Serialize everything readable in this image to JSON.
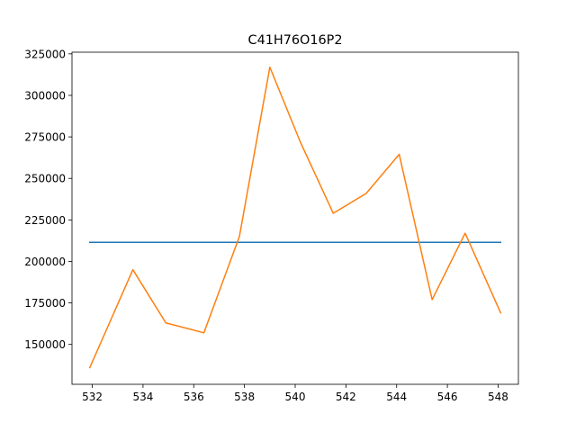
{
  "chart_data": {
    "type": "line",
    "title": "C41H76O16P2",
    "xlabel": "",
    "ylabel": "",
    "xlim": [
      531.2,
      548.8
    ],
    "ylim": [
      126000,
      326000
    ],
    "xticks": [
      532,
      534,
      536,
      538,
      540,
      542,
      544,
      546,
      548
    ],
    "yticks": [
      150000,
      175000,
      200000,
      225000,
      250000,
      275000,
      300000,
      325000
    ],
    "grid": false,
    "legend": "none",
    "series": [
      {
        "color": "#1f77b4",
        "x": [
          531.9,
          548.1
        ],
        "y": [
          211500,
          211500
        ]
      },
      {
        "color": "#ff7f0e",
        "x": [
          531.9,
          533.6,
          534.9,
          536.4,
          537.8,
          539.0,
          540.2,
          541.5,
          542.8,
          544.1,
          545.4,
          546.7,
          548.1
        ],
        "y": [
          136000,
          195000,
          163000,
          157000,
          215000,
          317000,
          272000,
          229000,
          241000,
          264500,
          177000,
          217000,
          169000
        ]
      }
    ]
  }
}
